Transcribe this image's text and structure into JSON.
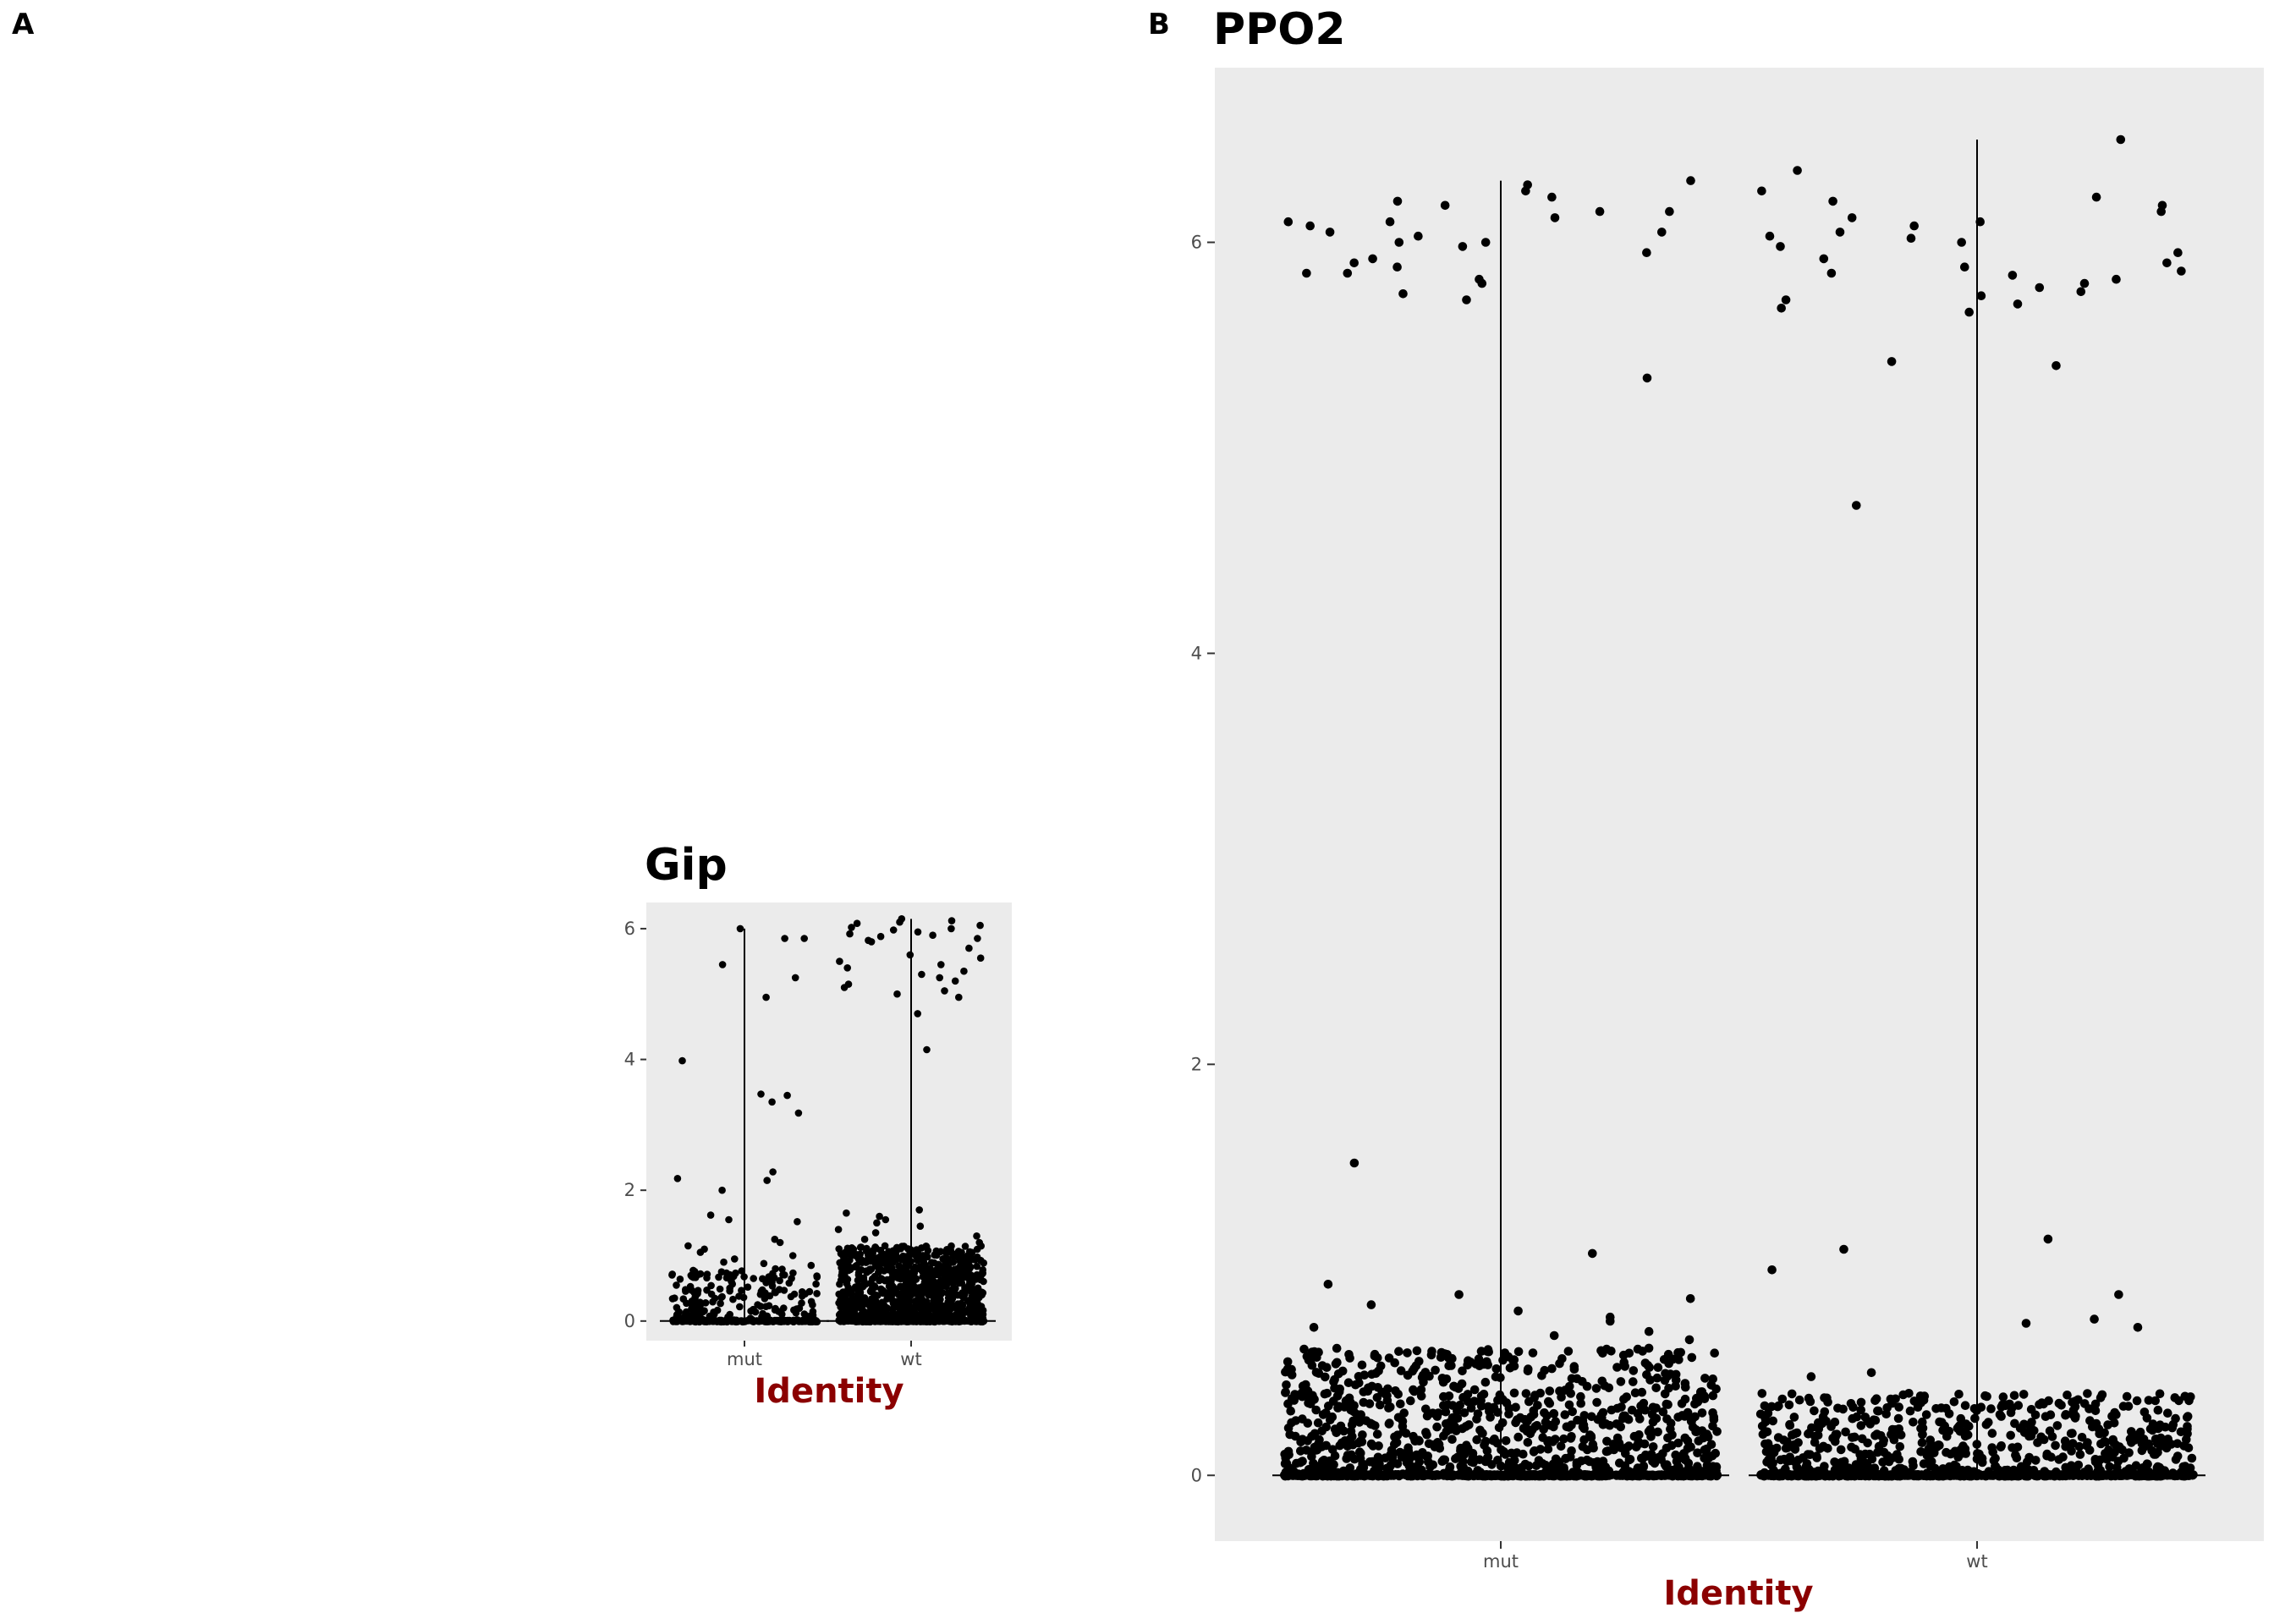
{
  "figure": {
    "panels": [
      {
        "tag": "A"
      },
      {
        "tag": "B"
      }
    ]
  },
  "chart_data": [
    {
      "type": "violin",
      "title": "Gip",
      "xlabel": "Identity",
      "ylabel": "",
      "categories": [
        "mut",
        "wt"
      ],
      "ylim": [
        -0.3,
        6.4
      ],
      "yticks": [
        0,
        2,
        4,
        6
      ],
      "grid": false,
      "legend": "none",
      "colors": {
        "panel_bg": "#ebebeb",
        "points": "#000000",
        "violin": "#000000",
        "axis_title": "#8b0000"
      },
      "series": [
        {
          "name": "mut",
          "max": 6.0,
          "upper_points": [
            5.85,
            6.0,
            5.85,
            5.45,
            5.25,
            4.95,
            3.98,
            3.47,
            3.45,
            3.35,
            3.18,
            2.28,
            2.18,
            2.15,
            2.0,
            1.62,
            1.55,
            1.52,
            1.25,
            1.2,
            1.15,
            1.1,
            1.05,
            1.0,
            0.95,
            0.9,
            0.88,
            0.85
          ],
          "low_points_count": 180,
          "low_max": 0.8
        },
        {
          "name": "wt",
          "max": 6.15,
          "upper_points": [
            6.15,
            6.12,
            6.1,
            6.08,
            6.05,
            6.02,
            6.0,
            5.98,
            5.95,
            5.92,
            5.9,
            5.88,
            5.85,
            5.82,
            5.8,
            5.7,
            5.6,
            5.55,
            5.5,
            5.45,
            5.4,
            5.35,
            5.3,
            5.25,
            5.2,
            5.15,
            5.1,
            5.05,
            5.0,
            4.95,
            4.7,
            4.15,
            1.7,
            1.65,
            1.6,
            1.55,
            1.5,
            1.45,
            1.4,
            1.35,
            1.3,
            1.25,
            1.2,
            1.15
          ],
          "low_points_count": 900,
          "low_max": 1.15
        }
      ]
    },
    {
      "type": "violin",
      "title": "PPO2",
      "xlabel": "Identity",
      "ylabel": "",
      "categories": [
        "mut",
        "wt"
      ],
      "ylim": [
        -0.32,
        6.85
      ],
      "yticks": [
        0,
        2,
        4,
        6
      ],
      "grid": false,
      "legend": "none",
      "colors": {
        "panel_bg": "#ebebeb",
        "points": "#000000",
        "violin": "#000000",
        "axis_title": "#8b0000"
      },
      "series": [
        {
          "name": "mut",
          "max": 6.3,
          "upper_points": [
            6.3,
            6.28,
            6.25,
            6.22,
            6.2,
            6.18,
            6.15,
            6.15,
            6.12,
            6.1,
            6.1,
            6.08,
            6.05,
            6.05,
            6.03,
            6.0,
            6.0,
            5.98,
            5.95,
            5.92,
            5.9,
            5.88,
            5.85,
            5.85,
            5.82,
            5.8,
            5.75,
            5.72,
            5.34,
            1.52,
            1.08,
            0.93,
            0.88,
            0.86,
            0.83,
            0.8,
            0.77,
            0.75,
            0.72,
            0.7,
            0.68,
            0.66
          ],
          "low_points_count": 900,
          "low_max": 0.62
        },
        {
          "name": "wt",
          "max": 6.5,
          "upper_points": [
            6.5,
            6.35,
            6.25,
            6.22,
            6.2,
            6.18,
            6.15,
            6.12,
            6.1,
            6.08,
            6.05,
            6.03,
            6.02,
            6.0,
            5.98,
            5.95,
            5.92,
            5.9,
            5.88,
            5.86,
            5.85,
            5.84,
            5.82,
            5.8,
            5.78,
            5.76,
            5.74,
            5.72,
            5.7,
            5.68,
            5.66,
            5.42,
            5.4,
            4.72,
            1.15,
            1.1,
            1.0,
            0.88,
            0.76,
            0.74,
            0.72,
            0.5,
            0.48
          ],
          "low_points_count": 600,
          "low_max": 0.4
        }
      ]
    }
  ]
}
